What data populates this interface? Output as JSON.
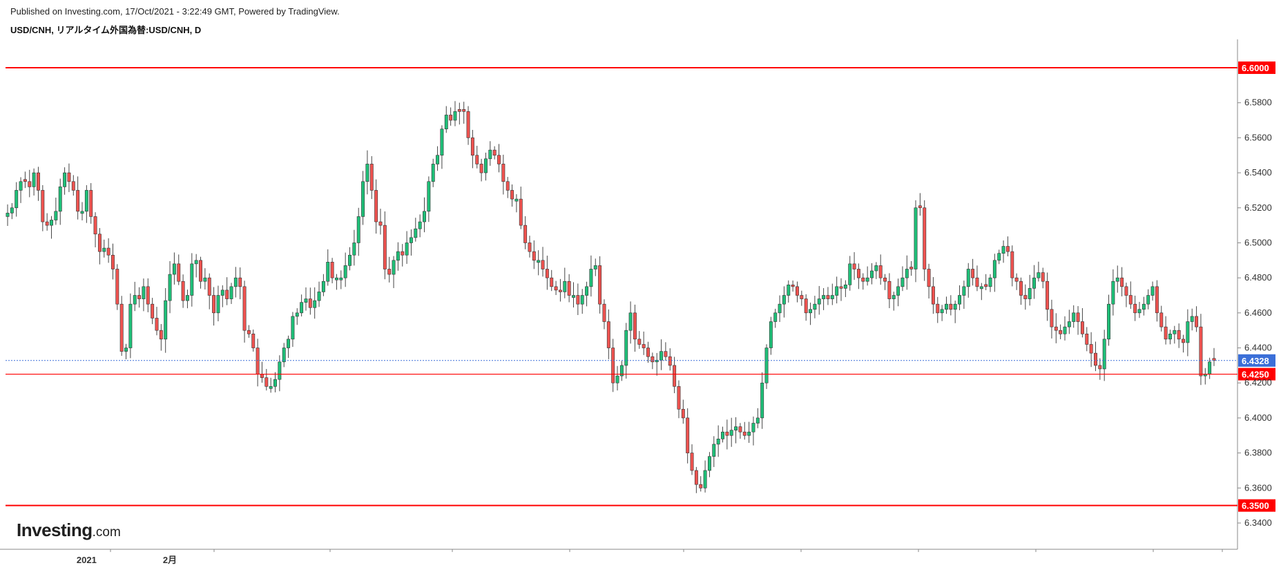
{
  "header": {
    "published": "Published on Investing.com, 17/Oct/2021 - 3:22:49 GMT, Powered by TradingView.",
    "symbol": "USD/CNH, リアルタイム外国為替:USD/CNH, D"
  },
  "logo": {
    "bold": "Investing",
    "suffix": ".com"
  },
  "colors": {
    "up": "#1fbf78",
    "down": "#ef5350",
    "level": "#ff0000",
    "last": "#3b6fd8",
    "axis": "#888888"
  },
  "chart_data": {
    "type": "candlestick",
    "ylim": [
      6.325,
      6.615
    ],
    "y_ticks": [
      "6.3400",
      "6.3600",
      "6.3800",
      "6.4000",
      "6.4200",
      "6.4400",
      "6.4600",
      "6.4800",
      "6.5000",
      "6.5200",
      "6.5400",
      "6.5600",
      "6.5800"
    ],
    "x_labels": [
      {
        "label": "2021",
        "index": 18
      },
      {
        "label": "2月",
        "index": 37
      }
    ],
    "horizontal_levels": [
      {
        "value": 6.6,
        "label": "6.6000"
      },
      {
        "value": 6.425,
        "label": "6.4250"
      },
      {
        "value": 6.35,
        "label": "6.3500"
      }
    ],
    "last_price": {
      "value": 6.4328,
      "label": "6.4328"
    },
    "closes": [
      6.517,
      6.52,
      6.53,
      6.535,
      6.535,
      6.532,
      6.54,
      6.53,
      6.512,
      6.51,
      6.513,
      6.518,
      6.532,
      6.54,
      6.535,
      6.53,
      6.518,
      6.518,
      6.53,
      6.515,
      6.505,
      6.495,
      6.497,
      6.493,
      6.485,
      6.465,
      6.438,
      6.44,
      6.465,
      6.47,
      6.468,
      6.475,
      6.465,
      6.457,
      6.45,
      6.445,
      6.467,
      6.482,
      6.488,
      6.478,
      6.467,
      6.47,
      6.488,
      6.49,
      6.478,
      6.48,
      6.47,
      6.46,
      6.47,
      6.473,
      6.468,
      6.475,
      6.48,
      6.475,
      6.45,
      6.448,
      6.44,
      6.425,
      6.423,
      6.418,
      6.418,
      6.422,
      6.432,
      6.44,
      6.445,
      6.458,
      6.46,
      6.466,
      6.468,
      6.463,
      6.467,
      6.472,
      6.478,
      6.489,
      6.48,
      6.48,
      6.48,
      6.487,
      6.493,
      6.5,
      6.515,
      6.535,
      6.545,
      6.53,
      6.512,
      6.51,
      6.485,
      6.482,
      6.49,
      6.495,
      6.493,
      6.5,
      6.503,
      6.508,
      6.512,
      6.518,
      6.535,
      6.545,
      6.55,
      6.565,
      6.573,
      6.57,
      6.575,
      6.575,
      6.575,
      6.56,
      6.55,
      6.545,
      6.54,
      6.548,
      6.553,
      6.55,
      6.545,
      6.535,
      6.53,
      6.525,
      6.525,
      6.51,
      6.5,
      6.495,
      6.49,
      6.49,
      6.485,
      6.48,
      6.475,
      6.473,
      6.472,
      6.478,
      6.47,
      6.47,
      6.465,
      6.47,
      6.475,
      6.485,
      6.487,
      6.465,
      6.455,
      6.44,
      6.42,
      6.424,
      6.43,
      6.45,
      6.46,
      6.445,
      6.442,
      6.44,
      6.435,
      6.432,
      6.433,
      6.438,
      6.435,
      6.43,
      6.418,
      6.405,
      6.4,
      6.38,
      6.37,
      6.362,
      6.36,
      6.37,
      6.378,
      6.385,
      6.388,
      6.392,
      6.39,
      6.393,
      6.395,
      6.392,
      6.39,
      6.392,
      6.397,
      6.4,
      6.42,
      6.44,
      6.455,
      6.46,
      6.465,
      6.47,
      6.476,
      6.475,
      6.47,
      6.468,
      6.46,
      6.462,
      6.465,
      6.468,
      6.47,
      6.468,
      6.47,
      6.475,
      6.474,
      6.476,
      6.488,
      6.485,
      6.48,
      6.478,
      6.48,
      6.484,
      6.487,
      6.48,
      6.478,
      6.468,
      6.47,
      6.475,
      6.48,
      6.485,
      6.485,
      6.52,
      6.52,
      6.485,
      6.475,
      6.465,
      6.46,
      6.462,
      6.465,
      6.462,
      6.465,
      6.47,
      6.475,
      6.485,
      6.48,
      6.475,
      6.475,
      6.475,
      6.48,
      6.49,
      6.494,
      6.498,
      6.495,
      6.48,
      6.478,
      6.47,
      6.468,
      6.474,
      6.48,
      6.483,
      6.478,
      6.462,
      6.452,
      6.45,
      6.448,
      6.452,
      6.455,
      6.46,
      6.455,
      6.448,
      6.442,
      6.437,
      6.43,
      6.428,
      6.445,
      6.465,
      6.478,
      6.48,
      6.475,
      6.47,
      6.465,
      6.46,
      6.462,
      6.465,
      6.47,
      6.475,
      6.46,
      6.452,
      6.445,
      6.448,
      6.45,
      6.445,
      6.443,
      6.455,
      6.458,
      6.452,
      6.424,
      6.425,
      6.432,
      6.4328
    ]
  }
}
